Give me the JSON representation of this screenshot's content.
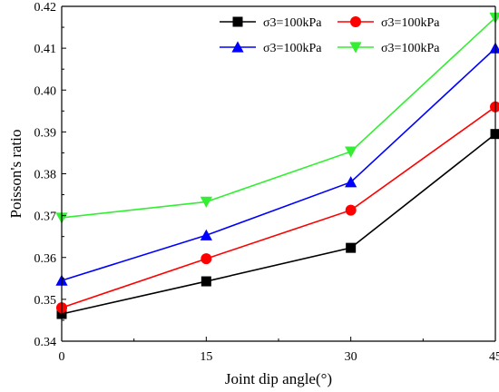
{
  "chart_data": {
    "type": "line",
    "title": "",
    "xlabel": "Joint dip angle(°)",
    "ylabel": "Poisson's ratio",
    "x": [
      0,
      15,
      30,
      45
    ],
    "xlim": [
      0,
      45
    ],
    "ylim": [
      0.34,
      0.42
    ],
    "xticks": [
      "0",
      "15",
      "30",
      "45"
    ],
    "yticks": [
      "0.34",
      "0.35",
      "0.36",
      "0.37",
      "0.38",
      "0.39",
      "0.40",
      "0.41",
      "0.42"
    ],
    "grid": false,
    "legend_position": "top-right",
    "series": [
      {
        "name": "σ3=100kPa",
        "color": "#000000",
        "marker": "square",
        "values": [
          0.3465,
          0.3543,
          0.3623,
          0.3895
        ]
      },
      {
        "name": "σ3=100kPa",
        "color": "#ff0000",
        "marker": "circle",
        "values": [
          0.348,
          0.3597,
          0.3713,
          0.396
        ]
      },
      {
        "name": "σ3=100kPa",
        "color": "#0000ff",
        "marker": "triangle-up",
        "values": [
          0.3545,
          0.3653,
          0.378,
          0.41
        ]
      },
      {
        "name": "σ3=100kPa",
        "color": "#33ee33",
        "marker": "triangle-down",
        "values": [
          0.3695,
          0.3733,
          0.3853,
          0.4173
        ]
      }
    ]
  }
}
